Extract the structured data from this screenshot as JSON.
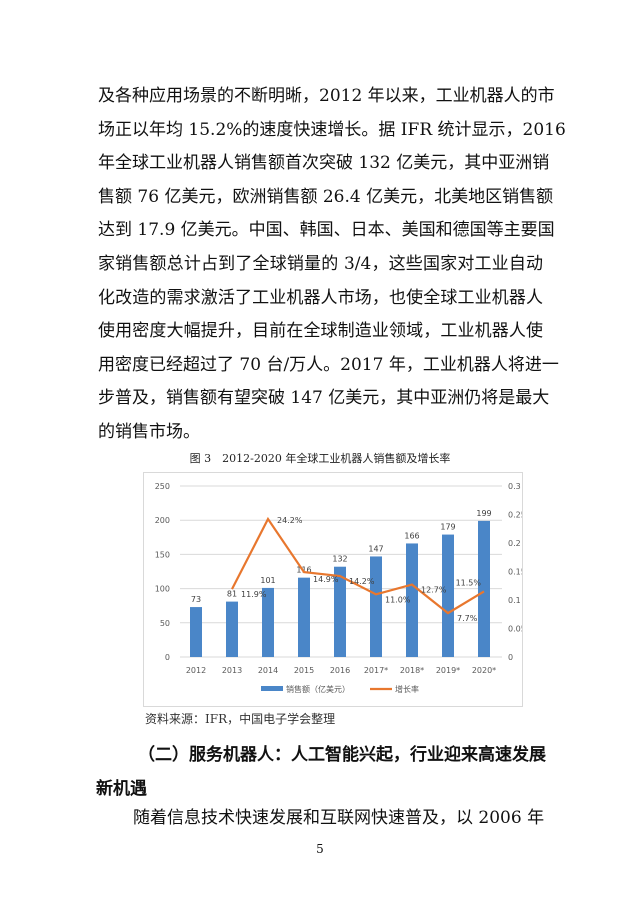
{
  "body_paragraph_1": [
    "及各种应用场景的不断明晰，2012 年以来，工业机器人的市",
    "场正以年均 15.2%的速度快速增长。据 IFR 统计显示，2016",
    "年全球工业机器人销售额首次突破 132 亿美元，其中亚洲销",
    "售额 76 亿美元，欧洲销售额 26.4 亿美元，北美地区销售额",
    "达到 17.9 亿美元。中国、韩国、日本、美国和德国等主要国",
    "家销售额总计占到了全球销量的 3/4，这些国家对工业自动",
    "化改造的需求激活了工业机器人市场，也使全球工业机器人",
    "使用密度大幅提升，目前在全球制造业领域，工业机器人使",
    "用密度已经超过了 70 台/万人。2017 年，工业机器人将进一",
    "步普及，销售额有望突破 147 亿美元，其中亚洲仍将是最大",
    "的销售市场。"
  ],
  "figure_caption": "图 3　2012-2020 年全球工业机器人销售额及增长率",
  "chart_data": {
    "type": "bar+line",
    "categories": [
      "2012",
      "2013",
      "2014",
      "2015",
      "2016",
      "2017*",
      "2018*",
      "2019*",
      "2020*"
    ],
    "series": [
      {
        "name": "销售额（亿美元）",
        "type": "bar",
        "axis": "left",
        "color": "#4a86c8",
        "values": [
          73,
          81,
          101,
          116,
          132,
          147,
          166,
          179,
          199
        ],
        "labels": [
          "73",
          "81",
          "101",
          "116",
          "132",
          "147",
          "166",
          "179",
          "199"
        ]
      },
      {
        "name": "增长率",
        "type": "line",
        "axis": "right",
        "color": "#e8772e",
        "values": [
          null,
          0.119,
          0.242,
          0.149,
          0.142,
          0.11,
          0.127,
          0.077,
          0.115
        ],
        "labels": [
          "",
          "11.9%",
          "24.2%",
          "14.9%",
          "14.2%",
          "11.0%",
          "12.7%",
          "7.7%",
          "11.5%"
        ]
      }
    ],
    "left_axis": {
      "ylim": [
        0,
        250
      ],
      "ticks": [
        "0",
        "50",
        "100",
        "150",
        "200",
        "250"
      ]
    },
    "right_axis": {
      "ylim": [
        0,
        0.3
      ],
      "ticks": [
        "0",
        "0.05",
        "0.1",
        "0.15",
        "0.2",
        "0.25",
        "0.3"
      ]
    },
    "grid": true,
    "legend": "bottom"
  },
  "source_note": "资料来源：IFR，中国电子学会整理",
  "section_heading": [
    "（二）服务机器人：人工智能兴起，行业迎来高速发展",
    "新机遇"
  ],
  "body_paragraph_2": [
    "随着信息技术快速发展和互联网快速普及，以 2006 年"
  ],
  "page_number": "5"
}
